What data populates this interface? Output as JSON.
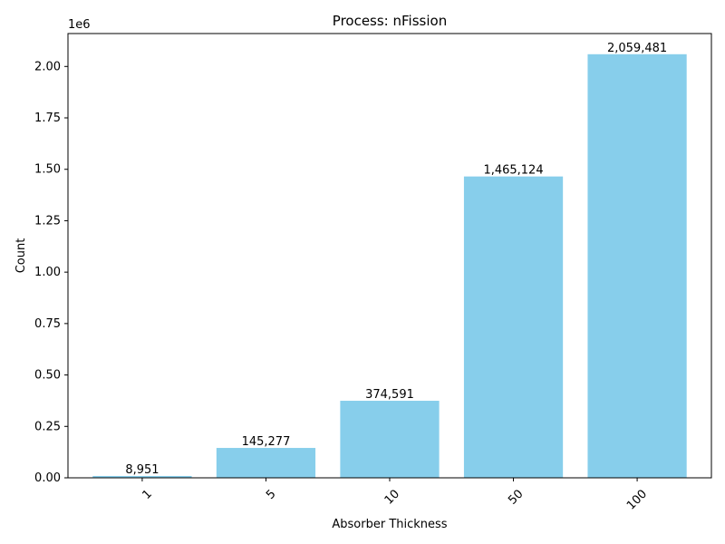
{
  "chart_data": {
    "type": "bar",
    "title": "Process: nFission",
    "xlabel": "Absorber Thickness",
    "ylabel": "Count",
    "y_offset_label": "1e6",
    "categories": [
      "1",
      "5",
      "10",
      "50",
      "100"
    ],
    "values": [
      8951,
      145277,
      374591,
      1465124,
      2059481
    ],
    "data_labels": [
      "8,951",
      "145,277",
      "374,591",
      "1,465,124",
      "2,059,481"
    ],
    "ylim": [
      0,
      2160000
    ],
    "y_ticks": [
      0,
      250000,
      500000,
      750000,
      1000000,
      1250000,
      1500000,
      1750000,
      2000000
    ],
    "y_tick_labels": [
      "0.00",
      "0.25",
      "0.50",
      "0.75",
      "1.00",
      "1.25",
      "1.50",
      "1.75",
      "2.00"
    ],
    "x_tick_rotation_deg": -45,
    "grid": false,
    "legend": "none",
    "bar_color": "#87ceeb"
  }
}
